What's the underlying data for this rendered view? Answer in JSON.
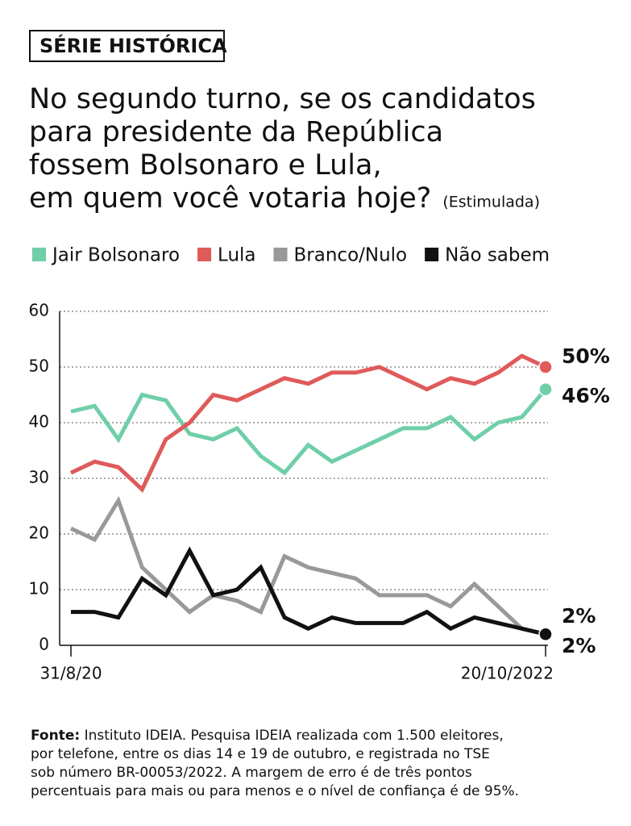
{
  "chart_data": {
    "type": "line",
    "tag": "SÉRIE HISTÓRICA",
    "title": [
      "No segundo turno, se os candidatos",
      "para presidente da República",
      "fossem Bolsonaro e Lula,",
      "em quem você votaria hoje?"
    ],
    "subtitle": "(Estimulada)",
    "categories": [
      "31/8/20",
      null,
      null,
      null,
      null,
      null,
      null,
      null,
      null,
      null,
      null,
      null,
      null,
      null,
      null,
      null,
      null,
      null,
      null,
      null,
      "20/10/2022"
    ],
    "series": [
      {
        "name": "Jair Bolsonaro",
        "color": "#6fcfa8",
        "values": [
          42,
          43,
          37,
          45,
          44,
          38,
          37,
          39,
          34,
          31,
          36,
          33,
          35,
          37,
          39,
          39,
          41,
          37,
          40,
          41,
          46
        ],
        "value_labels": [
          null,
          null,
          null,
          null,
          null,
          null,
          null,
          null,
          null,
          null,
          null,
          null,
          null,
          null,
          null,
          null,
          null,
          null,
          null,
          null,
          "46%"
        ]
      },
      {
        "name": "Lula",
        "color": "#e05a5a",
        "values": [
          31,
          33,
          32,
          28,
          37,
          40,
          45,
          44,
          46,
          48,
          47,
          49,
          49,
          50,
          48,
          46,
          48,
          47,
          49,
          52,
          50
        ],
        "value_labels": [
          null,
          null,
          null,
          null,
          null,
          null,
          null,
          null,
          null,
          null,
          null,
          null,
          null,
          null,
          null,
          null,
          null,
          null,
          null,
          null,
          "50%"
        ]
      },
      {
        "name": "Branco/Nulo",
        "color": "#999999",
        "values": [
          21,
          19,
          26,
          14,
          10,
          6,
          9,
          8,
          6,
          16,
          14,
          13,
          12,
          9,
          9,
          9,
          7,
          11,
          7,
          3,
          2
        ],
        "value_labels": [
          null,
          null,
          null,
          null,
          null,
          null,
          null,
          null,
          null,
          null,
          null,
          null,
          null,
          null,
          null,
          null,
          null,
          null,
          null,
          null,
          "2%"
        ]
      },
      {
        "name": "Não sabem",
        "color": "#111111",
        "values": [
          6,
          6,
          5,
          12,
          9,
          17,
          9,
          10,
          14,
          5,
          3,
          5,
          4,
          4,
          4,
          6,
          3,
          5,
          4,
          3,
          2
        ],
        "value_labels": [
          null,
          null,
          null,
          null,
          null,
          null,
          null,
          null,
          null,
          null,
          null,
          null,
          null,
          null,
          null,
          null,
          null,
          null,
          null,
          null,
          "2%"
        ]
      }
    ],
    "ylim": [
      0,
      60
    ],
    "yticks": [
      0,
      10,
      20,
      30,
      40,
      50,
      60
    ],
    "grid": true,
    "source_label": "Fonte:",
    "source": [
      " Instituto IDEIA. Pesquisa IDEIA realizada com 1.500 eleitores,",
      "por telefone, entre os dias 14 e 19 de outubro, e registrada no TSE",
      "sob número BR-00053/2022. A margem de erro é de três pontos",
      "percentuais para mais ou para menos e o nível de confiança é de 95%."
    ]
  }
}
